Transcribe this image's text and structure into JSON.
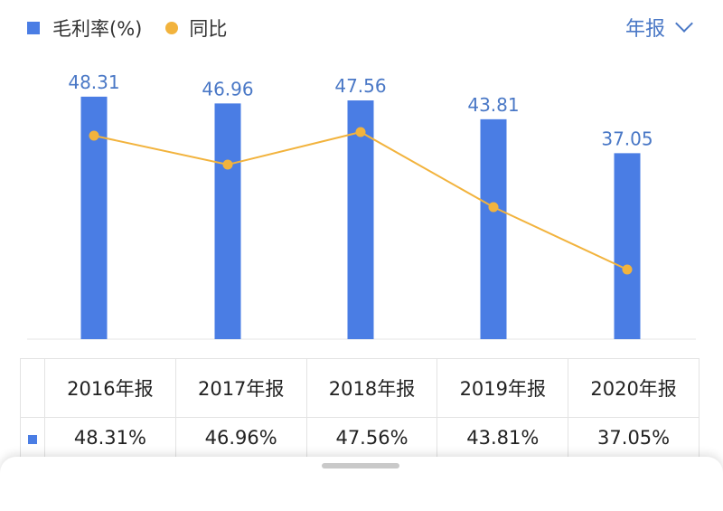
{
  "legend": {
    "bar_label": "毛利率(%)",
    "line_label": "同比"
  },
  "period_selector": {
    "label": "年报"
  },
  "colors": {
    "bar": "#4a7de4",
    "line": "#f2b33d",
    "label": "#4a78c6"
  },
  "chart_data": {
    "type": "bar",
    "categories": [
      "2016年报",
      "2017年报",
      "2018年报",
      "2019年报",
      "2020年报"
    ],
    "series": [
      {
        "name": "毛利率(%)",
        "type": "bar",
        "values": [
          48.31,
          46.96,
          47.56,
          43.81,
          37.05
        ]
      },
      {
        "name": "同比",
        "type": "line"
      }
    ],
    "data_labels": [
      "48.31",
      "46.96",
      "47.56",
      "43.81",
      "37.05"
    ]
  },
  "table": {
    "headers": [
      "2016年报",
      "2017年报",
      "2018年报",
      "2019年报",
      "2020年报"
    ],
    "values": [
      "48.31%",
      "46.96%",
      "47.56%",
      "43.81%",
      "37.05%"
    ]
  }
}
